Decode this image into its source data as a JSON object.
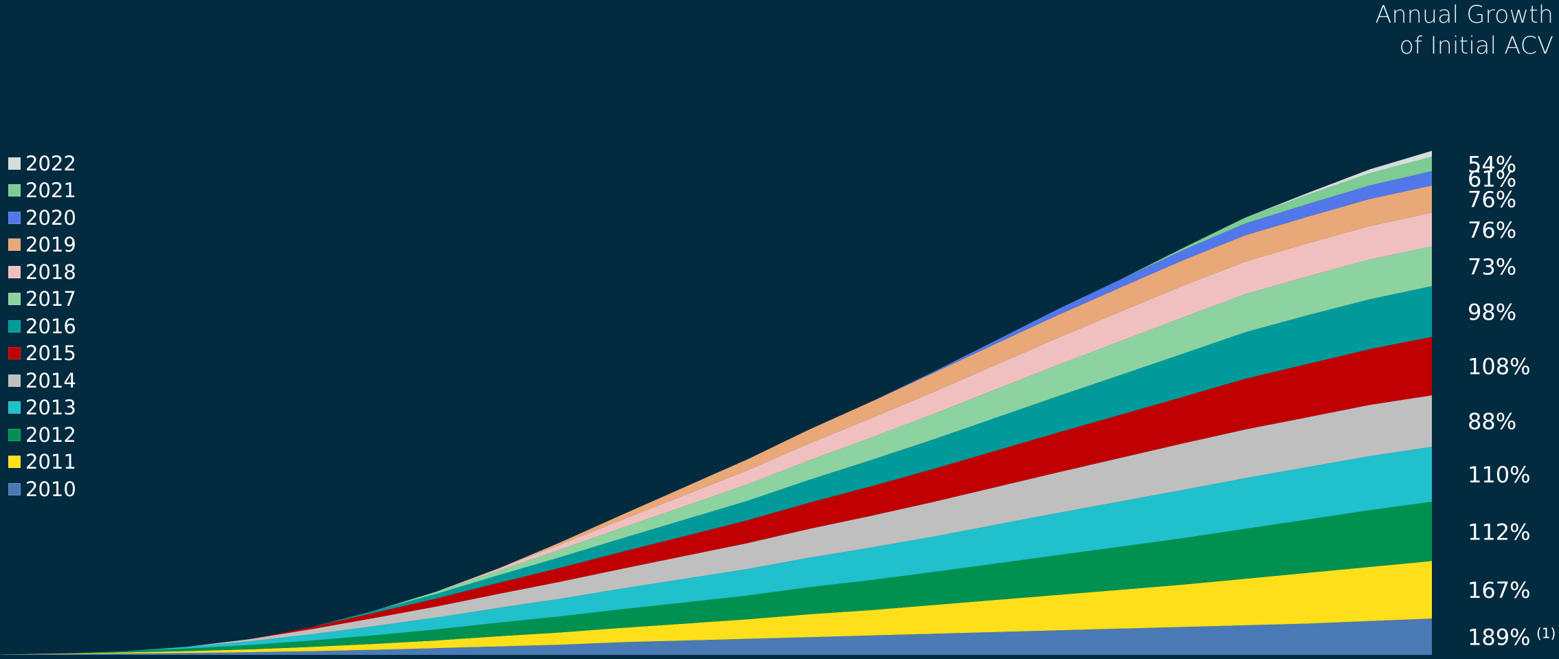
{
  "heading": {
    "line1": "Annual Growth",
    "line2": "of Initial ACV"
  },
  "colors": {
    "background": "#032b40",
    "2010": "#4a7ab5",
    "2011": "#fde01a",
    "2012": "#009150",
    "2013": "#20c0cc",
    "2014": "#bfbfbf",
    "2015": "#c00000",
    "2016": "#009a9a",
    "2017": "#8dd3a0",
    "2018": "#f0c0c0",
    "2019": "#e9a878",
    "2020": "#5277ea",
    "2021": "#7ccc93",
    "2022": "#d5ddda"
  },
  "legend": [
    "2022",
    "2021",
    "2020",
    "2019",
    "2018",
    "2017",
    "2016",
    "2015",
    "2014",
    "2013",
    "2012",
    "2011",
    "2010"
  ],
  "chart_data": {
    "type": "area",
    "stacked": true,
    "x_count": 24,
    "xlabel": "",
    "ylabel": "",
    "grid": false,
    "legend_position": "left",
    "series": [
      {
        "name": "2010",
        "values": [
          0.4,
          1.0,
          1.6,
          2.3,
          3.2,
          4.4,
          6,
          8,
          10,
          12,
          15,
          17,
          19,
          21,
          23,
          25,
          27,
          29,
          31,
          33,
          35,
          37,
          40,
          43
        ],
        "growth_label": "189%",
        "footnote": "(1)"
      },
      {
        "name": "2011",
        "values": [
          0,
          0.6,
          1.3,
          2.2,
          3.3,
          5,
          7,
          9,
          12,
          14.5,
          17,
          20,
          23,
          27,
          30,
          34,
          38,
          42,
          46,
          50,
          55,
          60,
          64,
          68
        ],
        "growth_label": "167%"
      },
      {
        "name": "2012",
        "values": [
          0,
          0,
          1.4,
          3,
          5,
          7.5,
          10,
          13,
          16,
          19,
          22,
          25,
          28,
          32,
          35.5,
          39,
          43,
          47,
          51,
          55,
          59,
          63,
          67,
          70
        ],
        "growth_label": "112%"
      },
      {
        "name": "2013",
        "values": [
          0,
          0,
          0,
          2,
          4.5,
          7.5,
          11,
          14,
          17.5,
          21,
          24.5,
          28,
          31.5,
          35,
          38.5,
          42,
          46,
          50,
          53.5,
          57,
          60,
          62,
          64,
          65
        ],
        "growth_label": "110%"
      },
      {
        "name": "2014",
        "values": [
          0,
          0,
          0,
          0,
          2.5,
          6,
          9.5,
          13,
          16.5,
          20,
          23.5,
          27,
          30.5,
          34,
          37.5,
          41,
          44.5,
          48,
          51.5,
          55,
          57.5,
          59,
          60.5,
          61
        ],
        "growth_label": "88%"
      },
      {
        "name": "2015",
        "values": [
          0,
          0,
          0,
          0,
          0,
          2.5,
          6,
          9.5,
          13,
          16.5,
          20,
          23.5,
          27,
          31,
          35,
          39,
          43,
          47,
          51,
          55,
          60,
          63,
          66,
          69
        ],
        "growth_label": "108%"
      },
      {
        "name": "2016",
        "values": [
          0,
          0,
          0,
          0,
          0,
          0,
          2.5,
          5.5,
          9,
          12.5,
          16,
          19.5,
          23,
          27,
          31,
          35,
          39,
          43,
          47,
          51,
          55,
          57.5,
          59,
          60
        ],
        "growth_label": "98%"
      },
      {
        "name": "2017",
        "values": [
          0,
          0,
          0,
          0,
          0,
          0,
          0,
          2.5,
          5.5,
          9,
          12.5,
          16,
          19.5,
          23,
          26.5,
          30,
          33.5,
          37,
          40,
          43,
          45,
          46,
          47,
          47
        ],
        "growth_label": "73%"
      },
      {
        "name": "2018",
        "values": [
          0,
          0,
          0,
          0,
          0,
          0,
          0,
          0,
          2.5,
          6,
          9.5,
          13,
          16.5,
          20,
          23,
          26,
          29,
          32,
          35,
          37.5,
          38.5,
          39,
          39.5,
          40
        ],
        "growth_label": "76%"
      },
      {
        "name": "2019",
        "values": [
          0,
          0,
          0,
          0,
          0,
          0,
          0,
          0,
          0,
          2.5,
          6,
          9.5,
          13,
          16.5,
          19.5,
          22.5,
          25,
          27,
          28.5,
          30,
          31,
          31.5,
          32,
          32
        ],
        "growth_label": "76%"
      },
      {
        "name": "2020",
        "values": [
          0,
          0,
          0,
          0,
          0,
          0,
          0,
          0,
          0,
          0,
          0,
          0,
          0,
          0,
          0,
          1.5,
          4,
          7,
          9.5,
          12,
          14,
          15,
          16,
          17
        ],
        "growth_label": "61%"
      },
      {
        "name": "2021",
        "values": [
          0,
          0,
          0,
          0,
          0,
          0,
          0,
          0,
          0,
          0,
          0,
          0,
          0,
          0,
          0,
          0,
          0,
          0,
          0,
          2.5,
          7,
          11,
          14.5,
          17
        ],
        "growth_label": "54%"
      },
      {
        "name": "2022",
        "values": [
          0,
          0,
          0,
          0,
          0,
          0,
          0,
          0,
          0,
          0,
          0,
          0,
          0,
          0,
          0,
          0,
          0,
          0,
          0,
          0,
          0,
          2,
          4.5,
          7
        ],
        "growth_label": ""
      }
    ],
    "ylim": [
      0,
      650
    ]
  }
}
